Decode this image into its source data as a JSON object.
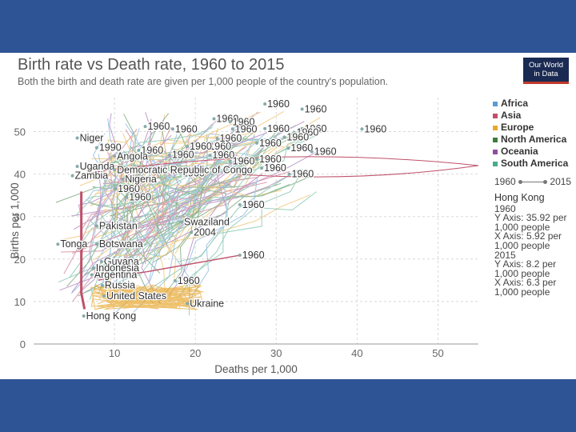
{
  "title": "Birth rate vs Death rate, 1960 to 2015",
  "subtitle": "Both the birth and death rate are given per 1,000 people of the country's population.",
  "logo": {
    "line1": "Our World",
    "line2": "in Data"
  },
  "legend": [
    {
      "label": "Africa",
      "color": "#5b9bd5"
    },
    {
      "label": "Asia",
      "color": "#c0506a"
    },
    {
      "label": "Europe",
      "color": "#e8a830"
    },
    {
      "label": "North America",
      "color": "#3c7d3c"
    },
    {
      "label": "Oceania",
      "color": "#8e4fa0"
    },
    {
      "label": "South America",
      "color": "#4aab8c"
    }
  ],
  "timeline": {
    "start": "1960",
    "end": "2015"
  },
  "tooltip": {
    "country": "Hong Kong",
    "year1": "1960",
    "y1": "Y Axis: 35.92 per 1,000 people",
    "x1": "X Axis: 5.92 per 1,000 people",
    "year2": "2015",
    "y2": "Y Axis: 8.2 per 1,000 people",
    "x2": "X Axis: 6.3 per 1,000 people"
  },
  "chart_data": {
    "type": "scatter",
    "title": "Birth rate vs Death rate, 1960 to 2015",
    "xlabel": "Deaths per 1,000",
    "ylabel": "Births per 1,000",
    "xlim": [
      0,
      55
    ],
    "ylim": [
      0,
      58
    ],
    "xticks": [
      10,
      20,
      30,
      40,
      50
    ],
    "yticks": [
      0,
      10,
      20,
      30,
      40,
      50
    ],
    "labels": [
      {
        "text": "1960",
        "x": 28.6,
        "y": 56.5
      },
      {
        "text": "1960",
        "x": 33.2,
        "y": 55.3
      },
      {
        "text": "1960",
        "x": 22.3,
        "y": 53.0
      },
      {
        "text": "1960",
        "x": 24.3,
        "y": 52.3
      },
      {
        "text": "1960",
        "x": 13.8,
        "y": 51.2
      },
      {
        "text": "1960",
        "x": 17.2,
        "y": 50.6
      },
      {
        "text": "1960",
        "x": 24.6,
        "y": 50.6
      },
      {
        "text": "1960",
        "x": 28.6,
        "y": 50.7
      },
      {
        "text": "1960",
        "x": 33.2,
        "y": 50.7
      },
      {
        "text": "1960",
        "x": 40.6,
        "y": 50.6
      },
      {
        "text": "1960",
        "x": 32.2,
        "y": 49.8
      },
      {
        "text": "1960",
        "x": 31.0,
        "y": 48.7
      },
      {
        "text": "1960",
        "x": 27.6,
        "y": 47.3
      },
      {
        "text": "1960",
        "x": 31.5,
        "y": 46.1
      },
      {
        "text": "1960",
        "x": 34.4,
        "y": 45.3
      },
      {
        "text": "1960",
        "x": 21.4,
        "y": 46.5
      },
      {
        "text": "1960",
        "x": 22.7,
        "y": 48.4
      },
      {
        "text": "1960",
        "x": 19.0,
        "y": 46.5
      },
      {
        "text": "1960",
        "x": 16.8,
        "y": 44.5
      },
      {
        "text": "1960",
        "x": 13.0,
        "y": 45.6
      },
      {
        "text": "1960",
        "x": 21.8,
        "y": 44.4
      },
      {
        "text": "1960",
        "x": 24.3,
        "y": 43.0
      },
      {
        "text": "1960",
        "x": 27.6,
        "y": 43.5
      },
      {
        "text": "1960",
        "x": 28.2,
        "y": 41.4
      },
      {
        "text": "1960",
        "x": 31.6,
        "y": 40.0
      },
      {
        "text": "1960",
        "x": 18.1,
        "y": 40.2
      },
      {
        "text": "1960",
        "x": 10.1,
        "y": 36.5
      },
      {
        "text": "1960",
        "x": 11.5,
        "y": 34.6
      },
      {
        "text": "1960",
        "x": 25.5,
        "y": 32.8
      },
      {
        "text": "1960",
        "x": 25.5,
        "y": 20.9
      },
      {
        "text": "1960",
        "x": 17.5,
        "y": 14.9
      },
      {
        "text": "Niger",
        "x": 5.4,
        "y": 48.5
      },
      {
        "text": "1990",
        "x": 7.8,
        "y": 46.2
      },
      {
        "text": "Angola",
        "x": 10.0,
        "y": 44.2
      },
      {
        "text": "Uganda",
        "x": 5.4,
        "y": 41.8
      },
      {
        "text": "Democratic Republic of Congo",
        "x": 10.0,
        "y": 41.0
      },
      {
        "text": "Zambia",
        "x": 4.8,
        "y": 39.6
      },
      {
        "text": "Nigeria",
        "x": 11.0,
        "y": 38.8
      },
      {
        "text": "Swaziland",
        "x": 18.3,
        "y": 28.7
      },
      {
        "text": "2004",
        "x": 19.5,
        "y": 26.3
      },
      {
        "text": "Pakistan",
        "x": 7.8,
        "y": 27.8
      },
      {
        "text": "Tonga",
        "x": 3.0,
        "y": 23.5
      },
      {
        "text": "Botswana",
        "x": 7.8,
        "y": 23.5
      },
      {
        "text": "Guyana",
        "x": 8.4,
        "y": 19.4
      },
      {
        "text": "Argentina",
        "x": 7.2,
        "y": 16.3
      },
      {
        "text": "Indonesia",
        "x": 7.4,
        "y": 17.9
      },
      {
        "text": "Russia",
        "x": 8.5,
        "y": 13.8
      },
      {
        "text": "United States",
        "x": 8.7,
        "y": 11.3
      },
      {
        "text": "Ukraine",
        "x": 19.0,
        "y": 9.5
      },
      {
        "text": "Hong Kong",
        "x": 6.2,
        "y": 6.6
      }
    ]
  }
}
